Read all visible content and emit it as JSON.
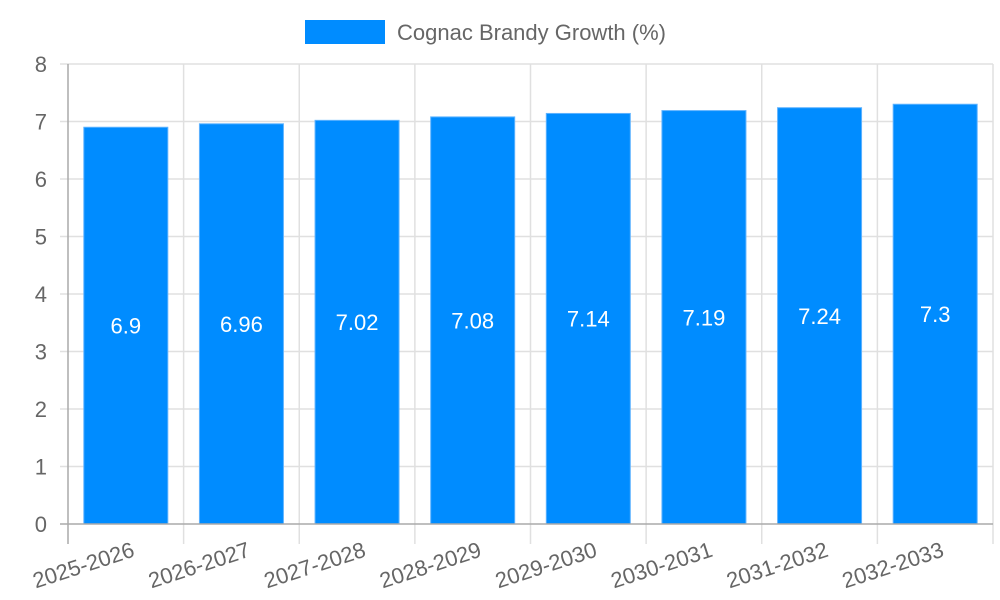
{
  "legend": {
    "label": "Cognac Brandy Growth (%)",
    "color": "#008cff"
  },
  "chart_data": {
    "type": "bar",
    "title": "",
    "xlabel": "",
    "ylabel": "",
    "ylim": [
      0,
      8
    ],
    "yticks": [
      0,
      1,
      2,
      3,
      4,
      5,
      6,
      7,
      8
    ],
    "grid": true,
    "legend_position": "top",
    "categories": [
      "2025-2026",
      "2026-2027",
      "2027-2028",
      "2028-2029",
      "2029-2030",
      "2030-2031",
      "2031-2032",
      "2032-2033"
    ],
    "series": [
      {
        "name": "Cognac Brandy Growth (%)",
        "color": "#008cff",
        "values": [
          6.9,
          6.96,
          7.02,
          7.08,
          7.14,
          7.19,
          7.24,
          7.3
        ],
        "labels": [
          "6.9",
          "6.96",
          "7.02",
          "7.08",
          "7.14",
          "7.19",
          "7.24",
          "7.3"
        ]
      }
    ]
  }
}
